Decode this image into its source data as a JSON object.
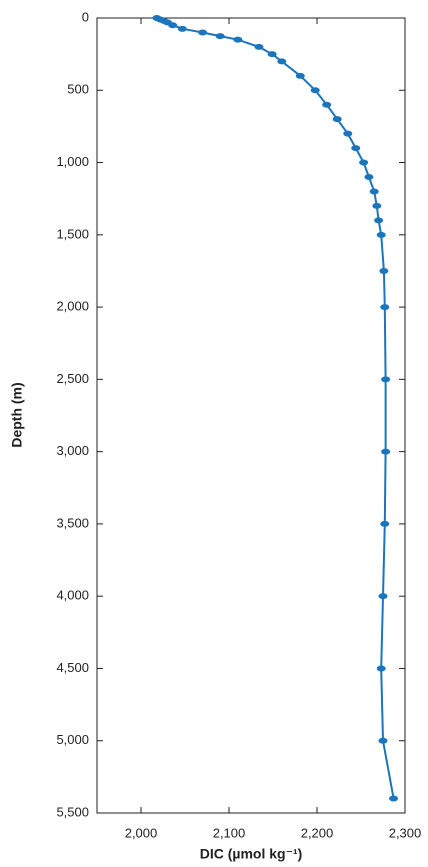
{
  "chart_data": {
    "type": "line",
    "x_label": "DIC (µmol kg⁻¹)",
    "y_label": "Depth (m)",
    "color": "#1a75bc",
    "x": [
      2018,
      2022,
      2026,
      2030,
      2036,
      2047,
      2070,
      2090,
      2110,
      2134,
      2149,
      2160,
      2181,
      2198,
      2211,
      2223,
      2235,
      2244,
      2253,
      2259,
      2265,
      2268,
      2270,
      2273,
      2276,
      2277,
      2278,
      2278,
      2277,
      2275,
      2273,
      2275,
      2287
    ],
    "values": [
      0,
      10,
      20,
      30,
      50,
      75,
      100,
      125,
      150,
      200,
      250,
      300,
      400,
      500,
      600,
      700,
      800,
      900,
      1000,
      1100,
      1200,
      1300,
      1400,
      1500,
      1750,
      2000,
      2500,
      3000,
      3500,
      4000,
      4500,
      5000,
      5400
    ],
    "xlim": [
      1950,
      2300
    ],
    "xticks": [
      {
        "value": 2000,
        "label": "2,000"
      },
      {
        "value": 2100,
        "label": "2,100"
      },
      {
        "value": 2200,
        "label": "2,200"
      },
      {
        "value": 2300,
        "label": "2,300"
      }
    ],
    "ylim": [
      0,
      5500
    ],
    "y_inverted": true,
    "yticks": [
      0,
      500,
      {
        "value": 1000,
        "label": "1,000"
      },
      {
        "value": 1500,
        "label": "1,500"
      },
      {
        "value": 2000,
        "label": "2,000"
      },
      {
        "value": 2500,
        "label": "2,500"
      },
      {
        "value": 3000,
        "label": "3,000"
      },
      {
        "value": 3500,
        "label": "3,500"
      },
      {
        "value": 4000,
        "label": "4,000"
      },
      {
        "value": 4500,
        "label": "4,500"
      },
      {
        "value": 5000,
        "label": "5,000"
      },
      {
        "value": 5500,
        "label": "5,500"
      }
    ]
  }
}
